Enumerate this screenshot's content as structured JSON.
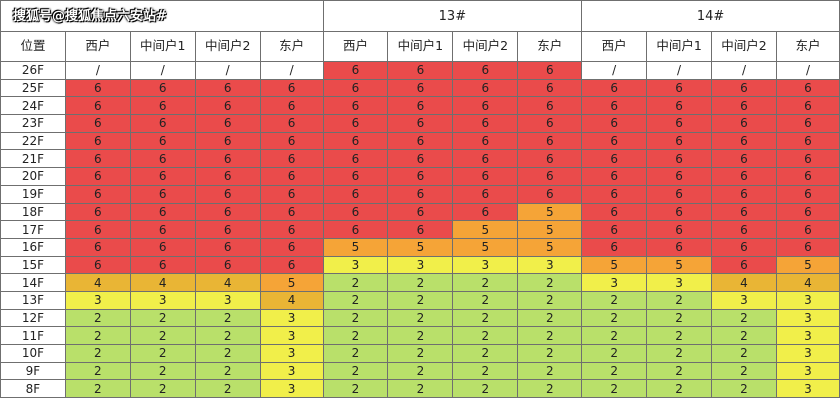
{
  "header": {
    "buildings": [
      "搜狐号@搜狐焦点六安站#",
      "13#",
      "14#"
    ],
    "position_label": "位置",
    "units": [
      "西户",
      "中间户1",
      "中间户2",
      "东户"
    ]
  },
  "palette": {
    "6": "#ea4b4b",
    "5": "#f5a437",
    "4": "#e9b535",
    "3": "#f1ef4a",
    "2": "#b9e06a",
    "/": "#ffffff"
  },
  "rows": [
    {
      "floor": "26F",
      "values": [
        "/",
        "/",
        "/",
        "/",
        "6",
        "6",
        "6",
        "6",
        "/",
        "/",
        "/",
        "/"
      ]
    },
    {
      "floor": "25F",
      "values": [
        "6",
        "6",
        "6",
        "6",
        "6",
        "6",
        "6",
        "6",
        "6",
        "6",
        "6",
        "6"
      ]
    },
    {
      "floor": "24F",
      "values": [
        "6",
        "6",
        "6",
        "6",
        "6",
        "6",
        "6",
        "6",
        "6",
        "6",
        "6",
        "6"
      ]
    },
    {
      "floor": "23F",
      "values": [
        "6",
        "6",
        "6",
        "6",
        "6",
        "6",
        "6",
        "6",
        "6",
        "6",
        "6",
        "6"
      ]
    },
    {
      "floor": "22F",
      "values": [
        "6",
        "6",
        "6",
        "6",
        "6",
        "6",
        "6",
        "6",
        "6",
        "6",
        "6",
        "6"
      ]
    },
    {
      "floor": "21F",
      "values": [
        "6",
        "6",
        "6",
        "6",
        "6",
        "6",
        "6",
        "6",
        "6",
        "6",
        "6",
        "6"
      ]
    },
    {
      "floor": "20F",
      "values": [
        "6",
        "6",
        "6",
        "6",
        "6",
        "6",
        "6",
        "6",
        "6",
        "6",
        "6",
        "6"
      ]
    },
    {
      "floor": "19F",
      "values": [
        "6",
        "6",
        "6",
        "6",
        "6",
        "6",
        "6",
        "6",
        "6",
        "6",
        "6",
        "6"
      ]
    },
    {
      "floor": "18F",
      "values": [
        "6",
        "6",
        "6",
        "6",
        "6",
        "6",
        "6",
        "5",
        "6",
        "6",
        "6",
        "6"
      ]
    },
    {
      "floor": "17F",
      "values": [
        "6",
        "6",
        "6",
        "6",
        "6",
        "6",
        "5",
        "5",
        "6",
        "6",
        "6",
        "6"
      ]
    },
    {
      "floor": "16F",
      "values": [
        "6",
        "6",
        "6",
        "6",
        "5",
        "5",
        "5",
        "5",
        "6",
        "6",
        "6",
        "6"
      ]
    },
    {
      "floor": "15F",
      "values": [
        "6",
        "6",
        "6",
        "6",
        "3",
        "3",
        "3",
        "3",
        "5",
        "5",
        "6",
        "5"
      ]
    },
    {
      "floor": "14F",
      "values": [
        "4",
        "4",
        "4",
        "5",
        "2",
        "2",
        "2",
        "2",
        "3",
        "3",
        "4",
        "4"
      ]
    },
    {
      "floor": "13F",
      "values": [
        "3",
        "3",
        "3",
        "4",
        "2",
        "2",
        "2",
        "2",
        "2",
        "2",
        "3",
        "3"
      ]
    },
    {
      "floor": "12F",
      "values": [
        "2",
        "2",
        "2",
        "3",
        "2",
        "2",
        "2",
        "2",
        "2",
        "2",
        "2",
        "3"
      ]
    },
    {
      "floor": "11F",
      "values": [
        "2",
        "2",
        "2",
        "3",
        "2",
        "2",
        "2",
        "2",
        "2",
        "2",
        "2",
        "3"
      ]
    },
    {
      "floor": "10F",
      "values": [
        "2",
        "2",
        "2",
        "3",
        "2",
        "2",
        "2",
        "2",
        "2",
        "2",
        "2",
        "3"
      ]
    },
    {
      "floor": "9F",
      "values": [
        "2",
        "2",
        "2",
        "3",
        "2",
        "2",
        "2",
        "2",
        "2",
        "2",
        "2",
        "3"
      ]
    },
    {
      "floor": "8F",
      "values": [
        "2",
        "2",
        "2",
        "3",
        "2",
        "2",
        "2",
        "2",
        "2",
        "2",
        "2",
        "3"
      ]
    }
  ]
}
